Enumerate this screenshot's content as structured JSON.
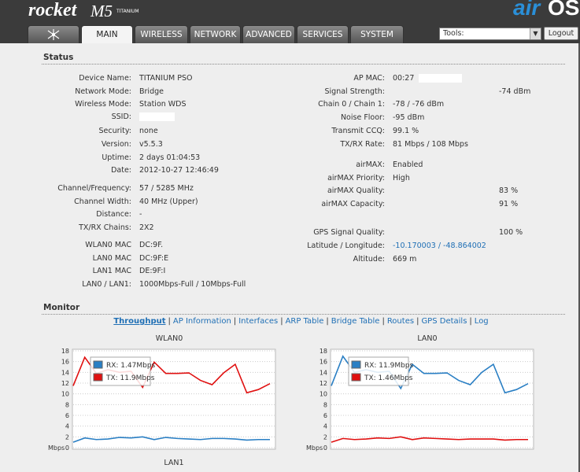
{
  "header": {
    "logo": "rocket",
    "model": "M5",
    "edition": "TITANIUM",
    "brand_air": "air",
    "brand_os": "OS"
  },
  "tabs": [
    "MAIN",
    "WIRELESS",
    "NETWORK",
    "ADVANCED",
    "SERVICES",
    "SYSTEM"
  ],
  "active_tab": "MAIN",
  "tools": {
    "select": "Tools:",
    "button": "Logout"
  },
  "status": {
    "title": "Status",
    "left": [
      {
        "label": "Device Name:",
        "value": "TITANIUM PSO"
      },
      {
        "label": "Network Mode:",
        "value": "Bridge"
      },
      {
        "label": "Wireless Mode:",
        "value": "Station WDS"
      },
      {
        "label": "SSID:"
      },
      {
        "label": "Security:",
        "value": "none"
      },
      {
        "label": "Version:",
        "value": "v5.5.3"
      },
      {
        "label": "Uptime:",
        "value": "2 days 01:04:53"
      },
      {
        "label": "Date:",
        "value": "2012-10-27 12:46:49"
      },
      {
        "label": "Channel/Frequency:",
        "value": "57 / 5285 MHz"
      },
      {
        "label": "Channel Width:",
        "value": "40 MHz (Upper)"
      },
      {
        "label": "Distance:",
        "value": "-"
      },
      {
        "label": "TX/RX Chains:",
        "value": "2X2"
      },
      {
        "label": "WLAN0 MAC",
        "value": "DC:9F."
      },
      {
        "label": "LAN0 MAC",
        "value": "DC:9F:E"
      },
      {
        "label": "LAN1 MAC",
        "value": "DE:9F:I"
      },
      {
        "label": "LAN0 / LAN1:",
        "value": "1000Mbps-Full / 10Mbps-Full"
      }
    ],
    "right": [
      {
        "label": "AP MAC:",
        "value": "00:27"
      },
      {
        "label": "Signal Strength:",
        "value": "-74 dBm",
        "meter": true
      },
      {
        "label": "Chain 0 / Chain 1:",
        "value": "-78 / -76 dBm"
      },
      {
        "label": "Noise Floor:",
        "value": "-95 dBm"
      },
      {
        "label": "Transmit CCQ:",
        "value": "99.1 %"
      },
      {
        "label": "TX/RX Rate:",
        "value": "81 Mbps / 108 Mbps"
      },
      {
        "label": "airMAX:",
        "value": "Enabled"
      },
      {
        "label": "airMAX Priority:",
        "value": "High"
      },
      {
        "label": "airMAX Quality:",
        "value": 83,
        "value_label": "83 %"
      },
      {
        "label": "airMAX Capacity:",
        "value": 91,
        "value_label": "91 %"
      },
      {
        "label": "GPS Signal Quality:",
        "value": 100,
        "value_label": "100 %"
      },
      {
        "label": "Latitude / Longitude:",
        "value": "-10.170003 / -48.864002",
        "link": true
      },
      {
        "label": "Altitude:",
        "value": "669 m"
      }
    ]
  },
  "monitor": {
    "title": "Monitor",
    "links": [
      "Throughput",
      "AP Information",
      "Interfaces",
      "ARP Table",
      "Bridge Table",
      "Routes",
      "GPS Details",
      "Log"
    ],
    "active_link": "Throughput",
    "separator": "|",
    "charts": [
      {
        "type": "line",
        "title": "WLAN0",
        "unit": "Mbps",
        "ylim": [
          0,
          18
        ],
        "yticks": [
          0,
          2,
          4,
          6,
          8,
          10,
          12,
          14,
          16,
          18
        ],
        "grid": true,
        "series": [
          {
            "name": "RX: 1.47Mbps",
            "color": "#2a7fc4",
            "values": [
              1.0,
              1.8,
              1.5,
              1.6,
              1.9,
              1.8,
              2.0,
              1.5,
              1.9,
              1.7,
              1.6,
              1.5,
              1.7,
              1.7,
              1.6,
              1.4,
              1.5,
              1.5
            ]
          },
          {
            "name": "TX: 11.9Mbps",
            "color": "#e01010",
            "values": [
              11.5,
              16.8,
              13.8,
              14.5,
              14.0,
              14.2,
              11.2,
              15.9,
              13.8,
              13.8,
              13.9,
              12.5,
              11.7,
              13.9,
              15.5,
              10.2,
              10.8,
              11.9
            ]
          }
        ]
      },
      {
        "type": "line",
        "title": "LAN0",
        "unit": "Mbps",
        "ylim": [
          0,
          18
        ],
        "yticks": [
          0,
          2,
          4,
          6,
          8,
          10,
          12,
          14,
          16,
          18
        ],
        "grid": true,
        "series": [
          {
            "name": "RX: 11.9Mbps",
            "color": "#2a7fc4",
            "values": [
              11.5,
              17.0,
              14.0,
              14.5,
              14.0,
              14.2,
              11.0,
              15.5,
              13.8,
              13.8,
              13.9,
              12.5,
              11.7,
              14.0,
              15.5,
              10.2,
              10.8,
              11.9
            ]
          },
          {
            "name": "TX: 1.46Mbps",
            "color": "#e01010",
            "values": [
              1.0,
              1.7,
              1.5,
              1.6,
              1.8,
              1.7,
              2.0,
              1.5,
              1.8,
              1.7,
              1.6,
              1.5,
              1.6,
              1.6,
              1.6,
              1.4,
              1.5,
              1.5
            ]
          }
        ]
      }
    ],
    "next_chart_title": "LAN1"
  }
}
